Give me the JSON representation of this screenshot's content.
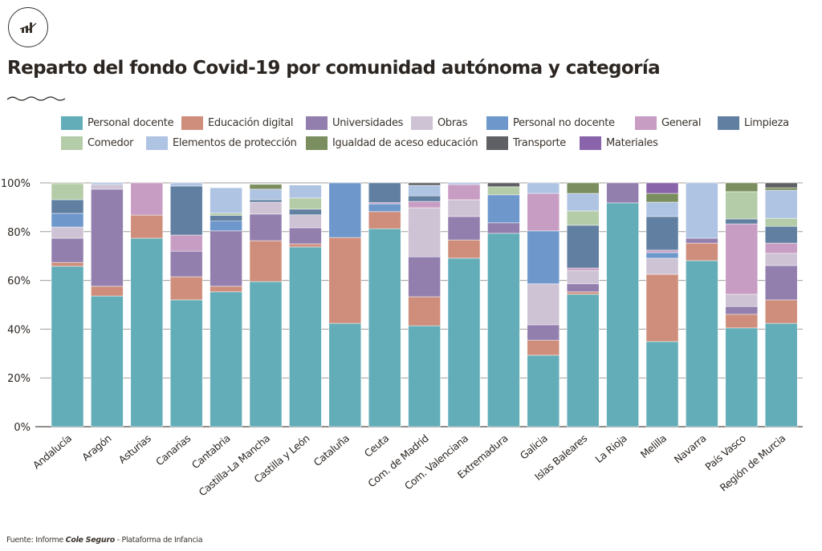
{
  "header": {
    "logo_icon": "bar-chart-trend-icon",
    "title": "Reparto del fondo Covid-19 por comunidad autónoma y categoría",
    "divider_icon": "wavy-line-icon"
  },
  "footer": {
    "source_prefix": "Fuente: Informe ",
    "source_emphasis": "Cole Seguro",
    "source_suffix": " - Plataforma de Infancia"
  },
  "chart_data": {
    "type": "bar",
    "stacked": true,
    "normalized_percent": true,
    "title": "Reparto del fondo Covid-19 por comunidad autónoma y categoría",
    "xlabel": "",
    "ylabel": "",
    "ylim": [
      0,
      100
    ],
    "yticks": [
      0,
      20,
      40,
      60,
      80,
      100
    ],
    "ytick_labels": [
      "0%",
      "20%",
      "40%",
      "60%",
      "80%",
      "100%"
    ],
    "grid": "horizontal",
    "legend_position": "top",
    "categories": [
      "Andalucía",
      "Aragón",
      "Asturias",
      "Canarias",
      "Cantabria",
      "Castilla-La Mancha",
      "Castilla y León",
      "Cataluña",
      "Ceuta",
      "Com. de Madrid",
      "Com. Valenciana",
      "Extremadura",
      "Galicia",
      "Islas Baleares",
      "La Rioja",
      "Melilla",
      "Navarra",
      "País Vasco",
      "Región de Murcia"
    ],
    "series": [
      {
        "name": "Personal docente",
        "color": "#62adb8",
        "values": [
          65.8,
          53.6,
          77.3,
          52.0,
          55.3,
          59.5,
          73.7,
          42.4,
          81.2,
          41.4,
          69.1,
          79.3,
          29.3,
          54.3,
          91.8,
          34.9,
          68.1,
          40.5,
          42.4
        ]
      },
      {
        "name": "Educación digital",
        "color": "#cf8e7c",
        "values": [
          1.6,
          4.0,
          9.5,
          9.5,
          2.3,
          16.8,
          1.3,
          35.2,
          7.0,
          11.9,
          7.5,
          0,
          6.2,
          1.0,
          0,
          27.6,
          7.2,
          5.6,
          9.6
        ]
      },
      {
        "name": "Universidades",
        "color": "#937fae",
        "values": [
          9.9,
          39.8,
          0,
          10.5,
          22.7,
          10.9,
          6.6,
          0,
          0,
          16.4,
          9.6,
          4.3,
          6.3,
          3.3,
          8.2,
          0,
          2.0,
          3.2,
          14.1
        ]
      },
      {
        "name": "Obras",
        "color": "#cdc3d5",
        "values": [
          4.6,
          1.9,
          0,
          0,
          0,
          4.9,
          5.3,
          0,
          0,
          20.1,
          6.9,
          0,
          16.8,
          5.5,
          0,
          6.6,
          0,
          5.0,
          5.0
        ]
      },
      {
        "name": "Personal no docente",
        "color": "#6e98cc",
        "values": [
          5.6,
          0,
          0,
          0,
          4.0,
          0,
          0,
          22.4,
          3.2,
          0,
          0,
          11.5,
          21.7,
          0,
          0,
          2.3,
          0,
          0,
          0
        ]
      },
      {
        "name": "General",
        "color": "#c89dc3",
        "values": [
          0,
          0,
          13.2,
          6.6,
          0,
          0,
          0,
          0,
          0.5,
          2.6,
          6.2,
          0,
          15.4,
          1.0,
          0,
          1.0,
          0,
          28.9,
          4.2
        ]
      },
      {
        "name": "Limpieza",
        "color": "#617fa0",
        "values": [
          5.6,
          0,
          0,
          20.1,
          2.3,
          1.0,
          2.3,
          0,
          8.1,
          2.3,
          0,
          0,
          0,
          17.5,
          0,
          13.8,
          0,
          2.0,
          6.9
        ]
      },
      {
        "name": "Comedor",
        "color": "#b5cca9",
        "values": [
          6.6,
          0,
          0,
          0,
          1.0,
          0,
          4.6,
          0,
          0,
          0,
          0,
          3.3,
          0,
          5.9,
          0,
          0,
          0,
          11.2,
          3.3
        ]
      },
      {
        "name": "Elementos de protección",
        "color": "#afc3e3",
        "values": [
          0,
          0.7,
          0,
          1.3,
          10.4,
          4.3,
          5.3,
          0,
          0,
          4.3,
          0.7,
          0,
          4.3,
          7.2,
          0,
          5.9,
          22.7,
          0,
          11.5
        ]
      },
      {
        "name": "Igualdad de aceso educación",
        "color": "#7a8e5f",
        "values": [
          0.3,
          0,
          0,
          0,
          0,
          2.0,
          0,
          0,
          0,
          0,
          0,
          0,
          0,
          4.3,
          0,
          3.6,
          0,
          3.6,
          1.0
        ]
      },
      {
        "name": "Transporte",
        "color": "#5f6064",
        "values": [
          0,
          0,
          0,
          0,
          0,
          0,
          0,
          0,
          0,
          1.0,
          0,
          1.6,
          0,
          0,
          0,
          0,
          0,
          0,
          2.0
        ]
      },
      {
        "name": "Materiales",
        "color": "#8a64ab",
        "values": [
          0,
          0,
          0,
          0,
          0,
          0,
          0,
          0,
          0,
          0,
          0,
          0,
          0,
          0,
          0,
          4.3,
          0,
          0,
          0
        ]
      }
    ],
    "legend": [
      {
        "label": "Personal docente",
        "series": 0
      },
      {
        "label": "Educación digital",
        "series": 1
      },
      {
        "label": "Universidades",
        "series": 2
      },
      {
        "label": "Obras",
        "series": 3
      },
      {
        "label": "Personal no docente",
        "series": 4
      },
      {
        "label": "General",
        "series": 5
      },
      {
        "label": "Limpieza",
        "series": 6
      },
      {
        "label": "Comedor",
        "series": 7
      },
      {
        "label": "Elementos de protección",
        "series": 8
      },
      {
        "label": "Igualdad de aceso educación",
        "series": 9
      },
      {
        "label": "Transporte",
        "series": 10
      },
      {
        "label": "Materiales",
        "series": 11
      }
    ]
  }
}
